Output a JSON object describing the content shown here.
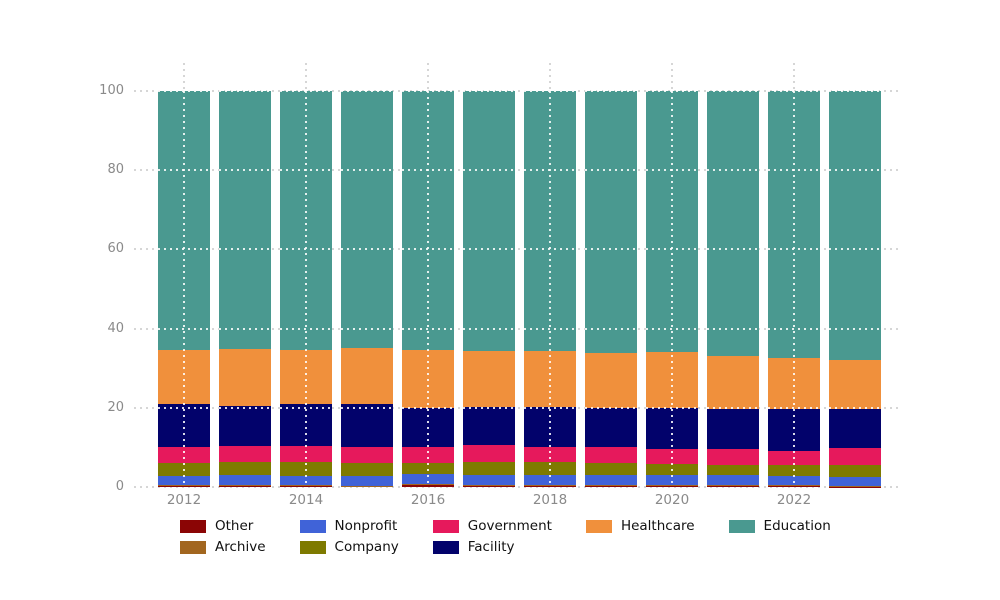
{
  "chart_data": {
    "type": "bar",
    "stacked": true,
    "normalized_percent": true,
    "title": "",
    "xlabel": "",
    "ylabel": "",
    "ylim": [
      0,
      100
    ],
    "y_ticks": [
      0,
      20,
      40,
      60,
      80,
      100
    ],
    "y_tick_labels": [
      "0",
      "20",
      "40",
      "60",
      "80",
      "100"
    ],
    "categories": [
      "2012",
      "2013",
      "2014",
      "2015",
      "2016",
      "2017",
      "2018",
      "2019",
      "2020",
      "2021",
      "2022",
      "2023"
    ],
    "x_tick_labels": [
      "2012",
      "2014",
      "2016",
      "2018",
      "2020",
      "2022"
    ],
    "grid": {
      "horizontal": true,
      "vertical": true,
      "style": "dotted",
      "color": "#d6d6d6"
    },
    "series": [
      {
        "name": "Other",
        "color": "#8B0505",
        "values": [
          0.3,
          0.3,
          0.2,
          0.2,
          0.4,
          0.2,
          0.3,
          0.2,
          0.3,
          0.2,
          0.2,
          0.1
        ]
      },
      {
        "name": "Archive",
        "color": "#A2661F",
        "values": [
          0.3,
          0.3,
          0.2,
          0.1,
          0.3,
          0.2,
          0.2,
          0.3,
          0.3,
          0.3,
          0.2,
          0.2
        ]
      },
      {
        "name": "Nonprofit",
        "color": "#4063D8",
        "values": [
          2.3,
          2.4,
          2.5,
          2.5,
          2.5,
          2.6,
          2.5,
          2.5,
          2.4,
          2.5,
          2.5,
          2.3
        ]
      },
      {
        "name": "Company",
        "color": "#7E7A00",
        "values": [
          3.1,
          3.2,
          3.3,
          3.3,
          2.8,
          3.4,
          3.2,
          3.0,
          2.9,
          2.6,
          2.6,
          2.9
        ]
      },
      {
        "name": "Government",
        "color": "#E6195C",
        "values": [
          4.2,
          4.1,
          4.1,
          4.0,
          4.1,
          4.1,
          4.0,
          4.0,
          3.8,
          3.9,
          3.6,
          4.3
        ]
      },
      {
        "name": "Facility",
        "color": "#02026B",
        "values": [
          10.8,
          10.2,
          10.6,
          10.8,
          9.9,
          9.8,
          9.9,
          9.9,
          10.2,
          10.3,
          10.6,
          9.8
        ]
      },
      {
        "name": "Healthcare",
        "color": "#F0903C",
        "values": [
          13.5,
          14.4,
          13.6,
          14.2,
          14.5,
          14.0,
          14.2,
          13.9,
          14.1,
          13.2,
          12.9,
          12.6
        ]
      },
      {
        "name": "Education",
        "color": "#4A9990",
        "values": [
          65.5,
          65.1,
          65.5,
          64.9,
          65.5,
          65.7,
          65.7,
          66.2,
          66.0,
          67.0,
          67.4,
          67.8
        ]
      }
    ],
    "legend": {
      "position": "bottom",
      "columns": [
        [
          "Other",
          "Archive"
        ],
        [
          "Nonprofit",
          "Company"
        ],
        [
          "Government",
          "Facility"
        ],
        [
          "Healthcare"
        ],
        [
          "Education"
        ]
      ]
    }
  }
}
